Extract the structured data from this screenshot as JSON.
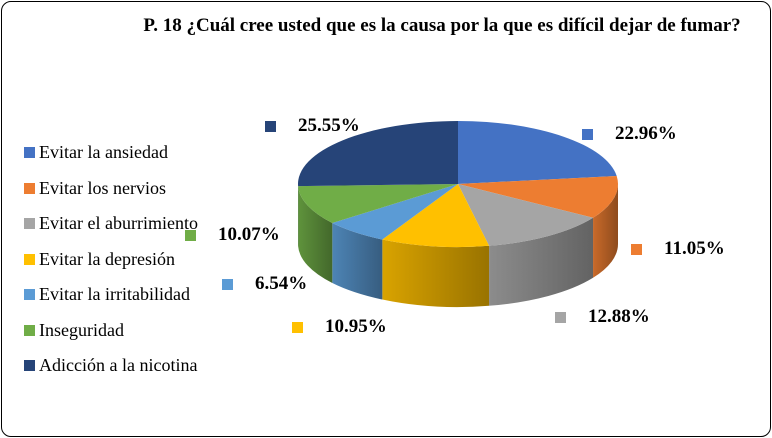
{
  "chart_data": {
    "type": "pie",
    "title": "P. 18 ¿Cuál cree usted que es la causa por la que es difícil dejar de fumar?",
    "categories": [
      "Evitar la ansiedad",
      "Evitar los nervios",
      "Evitar el aburrimiento",
      "Evitar la depresión",
      "Evitar la irritabilidad",
      "Inseguridad",
      "Adicción a la nicotina"
    ],
    "values": [
      22.96,
      11.05,
      12.88,
      10.95,
      6.54,
      10.07,
      25.55
    ],
    "labels": [
      "22.96%",
      "11.05%",
      "12.88%",
      "10.95%",
      "6.54%",
      "10.07%",
      "25.55%"
    ],
    "colors": [
      "#4472C4",
      "#ED7D31",
      "#A5A5A5",
      "#FFC000",
      "#5B9BD5",
      "#70AD47",
      "#264478"
    ],
    "legend_position": "left",
    "style": "3d"
  }
}
